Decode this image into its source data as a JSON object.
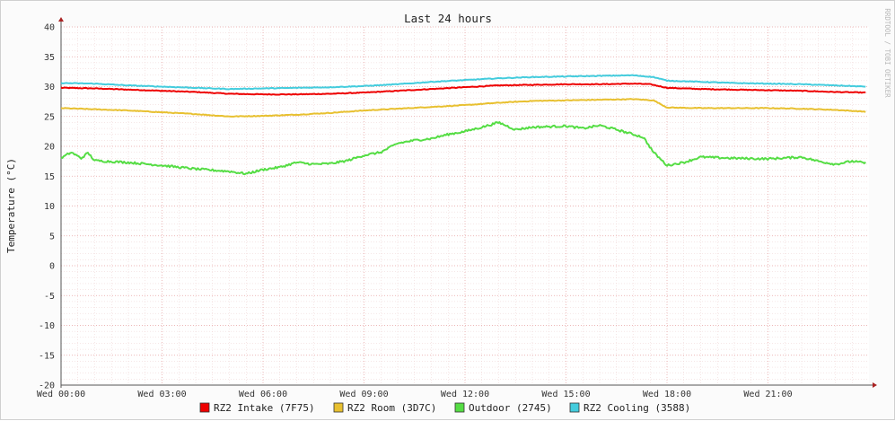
{
  "chart_data": {
    "type": "line",
    "title": "Last 24 hours",
    "xlabel": "",
    "ylabel": "Temperature (°C)",
    "watermark": "RRDTOOL / TOBI OETIKER",
    "ylim": [
      -20,
      40
    ],
    "yticks": [
      40,
      35,
      30,
      25,
      20,
      15,
      10,
      5,
      0,
      -5,
      -10,
      -15,
      -20
    ],
    "xlim_hours": [
      0,
      24
    ],
    "xticks": [
      {
        "hour": 0,
        "label": "Wed 00:00"
      },
      {
        "hour": 3,
        "label": "Wed 03:00"
      },
      {
        "hour": 6,
        "label": "Wed 06:00"
      },
      {
        "hour": 9,
        "label": "Wed 09:00"
      },
      {
        "hour": 12,
        "label": "Wed 12:00"
      },
      {
        "hour": 15,
        "label": "Wed 15:00"
      },
      {
        "hour": 18,
        "label": "Wed 18:00"
      },
      {
        "hour": 21,
        "label": "Wed 21:00"
      }
    ],
    "grid": true,
    "legend_position": "bottom",
    "series": [
      {
        "name": "RZ2 Intake (7F75)",
        "color": "#ee0000",
        "points": [
          [
            0,
            29.8
          ],
          [
            1,
            29.7
          ],
          [
            2,
            29.5
          ],
          [
            3,
            29.3
          ],
          [
            4,
            29.1
          ],
          [
            5,
            28.8
          ],
          [
            6,
            28.7
          ],
          [
            7,
            28.7
          ],
          [
            8,
            28.8
          ],
          [
            9,
            29.0
          ],
          [
            10,
            29.3
          ],
          [
            11,
            29.6
          ],
          [
            12,
            29.9
          ],
          [
            13,
            30.2
          ],
          [
            14,
            30.3
          ],
          [
            15,
            30.4
          ],
          [
            16,
            30.4
          ],
          [
            17,
            30.5
          ],
          [
            17.5,
            30.4
          ],
          [
            18,
            29.8
          ],
          [
            19,
            29.6
          ],
          [
            20,
            29.5
          ],
          [
            21,
            29.4
          ],
          [
            22,
            29.3
          ],
          [
            23,
            29.1
          ],
          [
            23.9,
            29.0
          ]
        ]
      },
      {
        "name": "RZ2 Room (3D7C)",
        "color": "#e8c030",
        "points": [
          [
            0,
            26.4
          ],
          [
            1,
            26.2
          ],
          [
            2,
            26.0
          ],
          [
            3,
            25.7
          ],
          [
            4,
            25.4
          ],
          [
            5,
            25.0
          ],
          [
            6,
            25.1
          ],
          [
            7,
            25.3
          ],
          [
            8,
            25.6
          ],
          [
            9,
            26.0
          ],
          [
            10,
            26.3
          ],
          [
            11,
            26.6
          ],
          [
            12,
            26.9
          ],
          [
            13,
            27.3
          ],
          [
            14,
            27.6
          ],
          [
            15,
            27.7
          ],
          [
            16,
            27.8
          ],
          [
            17,
            27.9
          ],
          [
            17.6,
            27.7
          ],
          [
            18,
            26.5
          ],
          [
            19,
            26.4
          ],
          [
            20,
            26.4
          ],
          [
            21,
            26.4
          ],
          [
            22,
            26.3
          ],
          [
            23,
            26.1
          ],
          [
            23.9,
            25.8
          ]
        ]
      },
      {
        "name": "Outdoor (2745)",
        "color": "#55dd44",
        "points": [
          [
            0,
            18.0
          ],
          [
            0.3,
            19.0
          ],
          [
            0.6,
            18.0
          ],
          [
            0.8,
            18.9
          ],
          [
            1,
            17.6
          ],
          [
            2,
            17.3
          ],
          [
            3,
            16.8
          ],
          [
            4,
            16.2
          ],
          [
            5,
            15.8
          ],
          [
            5.5,
            15.4
          ],
          [
            6,
            16.1
          ],
          [
            6.5,
            16.5
          ],
          [
            7,
            17.3
          ],
          [
            7.5,
            17.0
          ],
          [
            8,
            17.1
          ],
          [
            8.5,
            17.6
          ],
          [
            9,
            18.5
          ],
          [
            9.5,
            19.0
          ],
          [
            10,
            20.5
          ],
          [
            10.5,
            21.0
          ],
          [
            11,
            21.3
          ],
          [
            11.5,
            22.0
          ],
          [
            12,
            22.5
          ],
          [
            12.5,
            23.2
          ],
          [
            13,
            24.0
          ],
          [
            13.5,
            22.8
          ],
          [
            14,
            23.2
          ],
          [
            14.5,
            23.3
          ],
          [
            15,
            23.4
          ],
          [
            15.5,
            23.0
          ],
          [
            16,
            23.5
          ],
          [
            16.5,
            22.8
          ],
          [
            17,
            22.0
          ],
          [
            17.3,
            21.5
          ],
          [
            17.6,
            19.0
          ],
          [
            18,
            16.8
          ],
          [
            18.5,
            17.3
          ],
          [
            19,
            18.2
          ],
          [
            20,
            18.0
          ],
          [
            21,
            17.9
          ],
          [
            22,
            18.2
          ],
          [
            22.5,
            17.5
          ],
          [
            23,
            17.0
          ],
          [
            23.5,
            17.5
          ],
          [
            23.9,
            17.2
          ]
        ]
      },
      {
        "name": "RZ2 Cooling (3588)",
        "color": "#44ccdd",
        "points": [
          [
            0,
            30.6
          ],
          [
            1,
            30.5
          ],
          [
            2,
            30.2
          ],
          [
            3,
            30.0
          ],
          [
            4,
            29.8
          ],
          [
            5,
            29.6
          ],
          [
            6,
            29.7
          ],
          [
            7,
            29.8
          ],
          [
            8,
            29.9
          ],
          [
            9,
            30.1
          ],
          [
            10,
            30.4
          ],
          [
            11,
            30.8
          ],
          [
            12,
            31.1
          ],
          [
            13,
            31.4
          ],
          [
            14,
            31.6
          ],
          [
            15,
            31.7
          ],
          [
            16,
            31.8
          ],
          [
            17,
            31.9
          ],
          [
            17.6,
            31.6
          ],
          [
            18,
            31.0
          ],
          [
            19,
            30.8
          ],
          [
            20,
            30.6
          ],
          [
            21,
            30.5
          ],
          [
            22,
            30.4
          ],
          [
            23,
            30.2
          ],
          [
            23.9,
            30.0
          ]
        ]
      }
    ]
  }
}
